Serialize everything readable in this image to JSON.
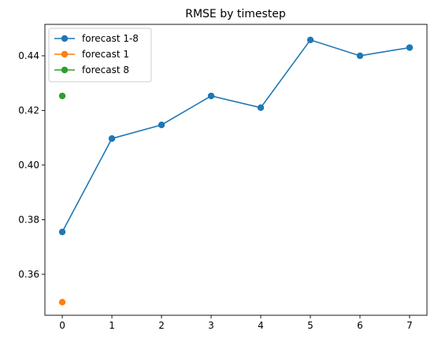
{
  "chart_data": {
    "type": "line",
    "title": "RMSE by timestep",
    "xlabel": "",
    "ylabel": "",
    "xlim": [
      -0.35,
      7.35
    ],
    "ylim": [
      0.345,
      0.4515
    ],
    "x_ticks": [
      0,
      1,
      2,
      3,
      4,
      5,
      6,
      7
    ],
    "x_tick_labels": [
      "0",
      "1",
      "2",
      "3",
      "4",
      "5",
      "6",
      "7"
    ],
    "y_ticks": [
      0.36,
      0.38,
      0.4,
      0.42,
      0.44
    ],
    "y_tick_labels": [
      "0.36",
      "0.38",
      "0.40",
      "0.42",
      "0.44"
    ],
    "grid": false,
    "legend_position": "top-left",
    "series": [
      {
        "name": "forecast 1-8",
        "color": "#1f77b4",
        "x": [
          0,
          1,
          2,
          3,
          4,
          5,
          6,
          7
        ],
        "y": [
          0.3755,
          0.4097,
          0.4147,
          0.4253,
          0.421,
          0.4458,
          0.44,
          0.443
        ]
      },
      {
        "name": "forecast 1",
        "color": "#ff7f0e",
        "x": [
          0
        ],
        "y": [
          0.3498
        ]
      },
      {
        "name": "forecast 8",
        "color": "#2ca02c",
        "x": [
          0
        ],
        "y": [
          0.4253
        ]
      }
    ]
  }
}
